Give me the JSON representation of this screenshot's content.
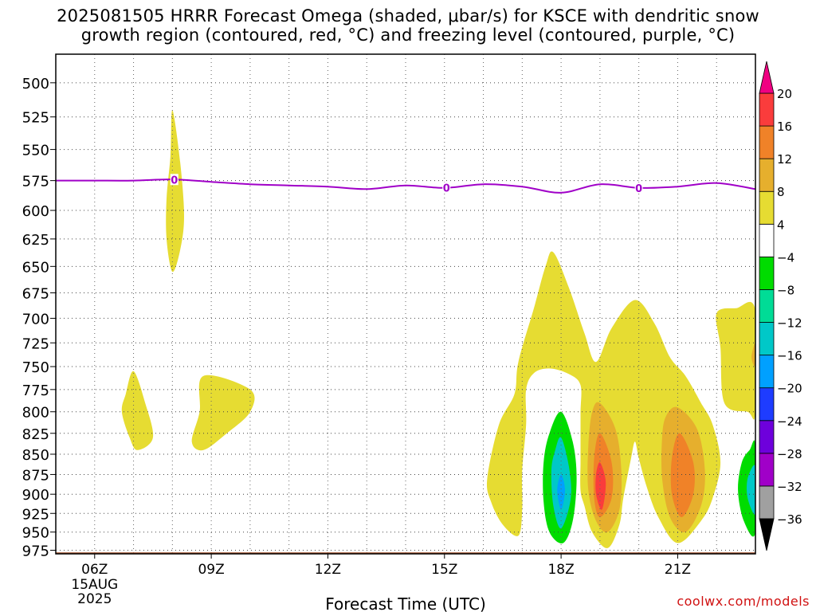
{
  "title_line1": "2025081505 HRRR Forecast Omega (shaded, μbar/s) for KSCE with dendritic snow",
  "title_line2": "growth region (contoured, red, °C) and freezing level (contoured, purple, °C)",
  "credit": "coolwx.com/models",
  "chart_data": {
    "type": "heatmap",
    "xlabel": "Forecast Time (UTC)",
    "ylabel": "",
    "x_range_hours_utc": [
      5,
      23
    ],
    "y_range_hPa": [
      980,
      480
    ],
    "y_scale": "log-pressure",
    "y_ticks": [
      500,
      525,
      550,
      575,
      600,
      625,
      650,
      675,
      700,
      725,
      750,
      775,
      800,
      825,
      850,
      875,
      900,
      925,
      950,
      975
    ],
    "x_ticks": [
      {
        "hour": 6,
        "label": "06Z",
        "sub1": "15AUG",
        "sub2": "2025"
      },
      {
        "hour": 9,
        "label": "09Z",
        "sub1": "",
        "sub2": ""
      },
      {
        "hour": 12,
        "label": "12Z",
        "sub1": "",
        "sub2": ""
      },
      {
        "hour": 15,
        "label": "15Z",
        "sub1": "",
        "sub2": ""
      },
      {
        "hour": 18,
        "label": "18Z",
        "sub1": "",
        "sub2": ""
      },
      {
        "hour": 21,
        "label": "21Z",
        "sub1": "",
        "sub2": ""
      }
    ],
    "grid": true,
    "colorbar": {
      "levels": [
        -36,
        -32,
        -28,
        -24,
        -20,
        -16,
        -12,
        -8,
        -4,
        4,
        8,
        12,
        16,
        20
      ],
      "colors": [
        "#000000",
        "#a0a0a0",
        "#a000c8",
        "#6e00dc",
        "#1e3cff",
        "#00a0ff",
        "#00c8c8",
        "#00dc96",
        "#00dc00",
        "#ffffff",
        "#e6dc32",
        "#e6af2d",
        "#f08228",
        "#fa3c3c",
        "#f00082"
      ],
      "placement": "right"
    },
    "freezing_level": {
      "contour_label": "0",
      "color": "#a000c8",
      "points": [
        [
          5.0,
          575
        ],
        [
          6.0,
          575
        ],
        [
          7.0,
          575
        ],
        [
          8.0,
          574
        ],
        [
          9.0,
          576
        ],
        [
          10.0,
          578
        ],
        [
          11.0,
          579
        ],
        [
          12.0,
          580
        ],
        [
          13.0,
          582
        ],
        [
          14.0,
          579
        ],
        [
          15.0,
          581
        ],
        [
          16.0,
          578
        ],
        [
          17.0,
          580
        ],
        [
          18.0,
          585
        ],
        [
          19.0,
          578
        ],
        [
          20.0,
          581
        ],
        [
          21.0,
          580
        ],
        [
          22.0,
          577
        ],
        [
          23.0,
          582
        ]
      ],
      "label_hours": [
        8.05,
        15.05,
        20.0
      ]
    },
    "omega_regions": [
      {
        "name": "yellow-800-6z",
        "value_range": "4 to 8",
        "points": [
          [
            7.0,
            755
          ],
          [
            7.3,
            790
          ],
          [
            7.5,
            830
          ],
          [
            7.1,
            845
          ],
          [
            6.9,
            830
          ],
          [
            6.7,
            800
          ],
          [
            6.8,
            780
          ]
        ]
      },
      {
        "name": "yellow-800-9z",
        "value_range": "4 to 8",
        "points": [
          [
            8.8,
            760
          ],
          [
            10.0,
            775
          ],
          [
            10.0,
            800
          ],
          [
            9.4,
            825
          ],
          [
            8.8,
            845
          ],
          [
            8.5,
            835
          ],
          [
            8.7,
            800
          ]
        ]
      },
      {
        "name": "yellow-575-8z",
        "value_range": "4 to 8",
        "points": [
          [
            8.0,
            520
          ],
          [
            8.2,
            560
          ],
          [
            8.3,
            605
          ],
          [
            8.2,
            635
          ],
          [
            8.0,
            655
          ],
          [
            7.85,
            625
          ],
          [
            7.85,
            590
          ],
          [
            7.95,
            555
          ]
        ]
      },
      {
        "name": "yellow-big",
        "value_range": "4 to 8",
        "points": [
          [
            16.1,
            880
          ],
          [
            16.4,
            815
          ],
          [
            16.8,
            780
          ],
          [
            16.9,
            745
          ],
          [
            17.3,
            690
          ],
          [
            17.6,
            650
          ],
          [
            17.8,
            637
          ],
          [
            18.2,
            670
          ],
          [
            18.6,
            715
          ],
          [
            18.9,
            745
          ],
          [
            19.3,
            710
          ],
          [
            19.9,
            682
          ],
          [
            20.4,
            705
          ],
          [
            20.8,
            740
          ],
          [
            21.2,
            760
          ],
          [
            21.6,
            790
          ],
          [
            21.9,
            815
          ],
          [
            22.1,
            860
          ],
          [
            21.9,
            905
          ],
          [
            21.6,
            935
          ],
          [
            21.0,
            965
          ],
          [
            20.5,
            930
          ],
          [
            20.2,
            890
          ],
          [
            20.0,
            855
          ],
          [
            19.9,
            835
          ],
          [
            19.8,
            855
          ],
          [
            19.6,
            905
          ],
          [
            19.5,
            940
          ],
          [
            19.2,
            972
          ],
          [
            18.8,
            950
          ],
          [
            18.6,
            915
          ],
          [
            18.5,
            895
          ],
          [
            18.5,
            860
          ],
          [
            18.5,
            830
          ],
          [
            18.5,
            800
          ],
          [
            18.5,
            770
          ],
          [
            18.2,
            758
          ],
          [
            17.7,
            752
          ],
          [
            17.3,
            757
          ],
          [
            17.1,
            775
          ],
          [
            17.1,
            815
          ],
          [
            17.0,
            870
          ],
          [
            17.0,
            920
          ],
          [
            16.9,
            955
          ],
          [
            16.5,
            940
          ],
          [
            16.2,
            910
          ]
        ]
      },
      {
        "name": "yellow-right",
        "value_range": "4 to 8",
        "points": [
          [
            22.0,
            695
          ],
          [
            22.5,
            690
          ],
          [
            23.0,
            692
          ],
          [
            23.0,
            800
          ],
          [
            22.8,
            800
          ],
          [
            22.2,
            790
          ],
          [
            22.1,
            730
          ]
        ]
      },
      {
        "name": "orange-19z",
        "value_range": "8 to 12",
        "points": [
          [
            19.0,
            790
          ],
          [
            19.4,
            820
          ],
          [
            19.55,
            870
          ],
          [
            19.5,
            920
          ],
          [
            19.2,
            950
          ],
          [
            18.9,
            935
          ],
          [
            18.7,
            895
          ],
          [
            18.7,
            840
          ],
          [
            18.8,
            800
          ]
        ]
      },
      {
        "name": "orange-21z",
        "value_range": "8 to 12",
        "points": [
          [
            21.0,
            795
          ],
          [
            21.5,
            820
          ],
          [
            21.7,
            870
          ],
          [
            21.6,
            915
          ],
          [
            21.2,
            950
          ],
          [
            20.8,
            930
          ],
          [
            20.6,
            880
          ],
          [
            20.6,
            830
          ],
          [
            20.7,
            805
          ]
        ]
      },
      {
        "name": "orange2-19z",
        "value_range": "12 to 16",
        "points": [
          [
            19.0,
            825
          ],
          [
            19.3,
            860
          ],
          [
            19.3,
            905
          ],
          [
            19.0,
            930
          ],
          [
            18.85,
            905
          ],
          [
            18.85,
            855
          ]
        ]
      },
      {
        "name": "orange2-21z",
        "value_range": "12 to 16",
        "points": [
          [
            21.05,
            825
          ],
          [
            21.4,
            860
          ],
          [
            21.4,
            900
          ],
          [
            21.1,
            930
          ],
          [
            20.85,
            900
          ],
          [
            20.85,
            855
          ]
        ]
      },
      {
        "name": "red-19z",
        "value_range": "16 to 20",
        "points": [
          [
            19.0,
            860
          ],
          [
            19.15,
            885
          ],
          [
            19.05,
            920
          ],
          [
            18.9,
            900
          ],
          [
            18.9,
            875
          ]
        ]
      },
      {
        "name": "green-18z",
        "value_range": "-8 to -4",
        "points": [
          [
            18.0,
            800
          ],
          [
            18.3,
            835
          ],
          [
            18.4,
            880
          ],
          [
            18.3,
            935
          ],
          [
            18.05,
            965
          ],
          [
            17.7,
            950
          ],
          [
            17.55,
            910
          ],
          [
            17.55,
            860
          ],
          [
            17.7,
            825
          ]
        ]
      },
      {
        "name": "teal-18z",
        "value_range": "-12 to -8",
        "points": [
          [
            18.0,
            830
          ],
          [
            18.2,
            865
          ],
          [
            18.25,
            905
          ],
          [
            18.0,
            945
          ],
          [
            17.8,
            915
          ],
          [
            17.75,
            870
          ],
          [
            17.85,
            845
          ]
        ]
      },
      {
        "name": "blue-18z",
        "value_range": "-16 to -12",
        "points": [
          [
            18.0,
            875
          ],
          [
            18.1,
            895
          ],
          [
            18.0,
            920
          ],
          [
            17.9,
            895
          ]
        ]
      },
      {
        "name": "green-right",
        "value_range": "-8 to -4",
        "points": [
          [
            23.0,
            840
          ],
          [
            23.0,
            950
          ],
          [
            22.7,
            935
          ],
          [
            22.55,
            895
          ],
          [
            22.65,
            860
          ],
          [
            22.85,
            845
          ]
        ]
      },
      {
        "name": "teal-right",
        "value_range": "-12 to -8",
        "points": [
          [
            23.0,
            865
          ],
          [
            23.0,
            925
          ],
          [
            22.8,
            905
          ],
          [
            22.8,
            880
          ]
        ]
      },
      {
        "name": "orange-edge",
        "value_range": "8 to 12",
        "points": [
          [
            23.0,
            725
          ],
          [
            23.0,
            750
          ],
          [
            22.9,
            740
          ]
        ]
      }
    ],
    "surface": {
      "color": "#a0522d"
    }
  }
}
